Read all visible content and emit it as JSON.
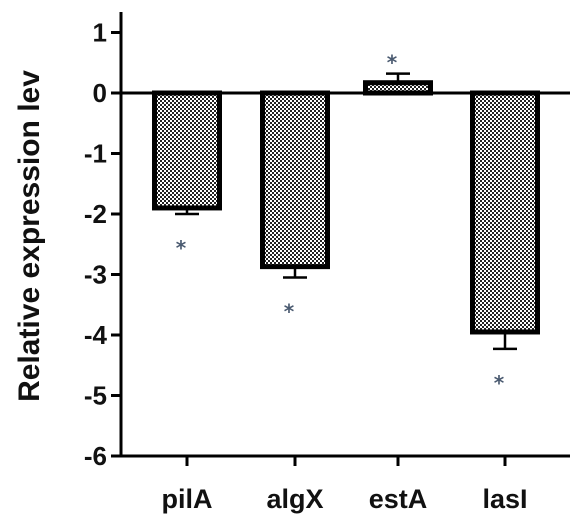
{
  "chart_data": {
    "type": "bar",
    "ylabel": "Relative expression lev",
    "xlabel": "",
    "title": "",
    "categories": [
      "pilA",
      "algX",
      "estA",
      "lasI"
    ],
    "values": [
      -1.9,
      -2.87,
      0.17,
      -3.95
    ],
    "errors": [
      0.1,
      0.18,
      0.15,
      0.28
    ],
    "significance": [
      "*",
      "*",
      "*",
      "*"
    ],
    "yticks": [
      "1",
      "0",
      "-1",
      "-2",
      "-3",
      "-4",
      "-5",
      "-6"
    ],
    "ylim": [
      -6,
      1.3
    ],
    "bar_fill": "checkered",
    "colors": {
      "bar_edge": "#000000",
      "check_dark": "#222222",
      "check_light": "#ffffff",
      "star": "#4a5a70"
    }
  }
}
